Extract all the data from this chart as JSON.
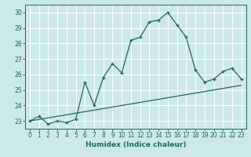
{
  "xlabel": "Humidex (Indice chaleur)",
  "ylabel": "",
  "bg_color": "#cde8e8",
  "grid_color": "#ffffff",
  "line_color": "#1a6b5a",
  "xlim": [
    -0.5,
    23.5
  ],
  "ylim": [
    22.5,
    30.5
  ],
  "yticks": [
    23,
    24,
    25,
    26,
    27,
    28,
    29,
    30
  ],
  "xticks": [
    0,
    1,
    2,
    3,
    4,
    5,
    6,
    7,
    8,
    9,
    10,
    11,
    12,
    13,
    14,
    15,
    16,
    17,
    18,
    19,
    20,
    21,
    22,
    23
  ],
  "line1_x": [
    0,
    1,
    2,
    3,
    4,
    5,
    6,
    7,
    8,
    9,
    10,
    11,
    12,
    13,
    14,
    15,
    16,
    17,
    18,
    19,
    20,
    21,
    22,
    23
  ],
  "line1_y": [
    23.0,
    23.3,
    22.8,
    23.0,
    22.9,
    23.1,
    25.5,
    24.0,
    25.8,
    26.7,
    26.1,
    28.2,
    28.4,
    29.4,
    29.5,
    30.0,
    29.2,
    28.4,
    26.3,
    25.5,
    25.7,
    26.2,
    26.4,
    25.7
  ],
  "line2_x": [
    0,
    23
  ],
  "line2_y": [
    23.0,
    25.3
  ]
}
